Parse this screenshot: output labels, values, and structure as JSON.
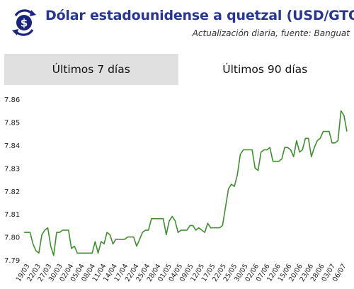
{
  "header": {
    "title": "Dólar estadounidense a quetzal (USD/GTQ)",
    "subtitle": "Actualización diaria, fuente: Banguat",
    "logo_icon": "dollar-exchange-icon",
    "accent_color": "#283593"
  },
  "tabs": [
    {
      "label": "Últimos 7 días",
      "active": false
    },
    {
      "label": "Últimos 90 días",
      "active": true
    }
  ],
  "chart_data": {
    "type": "line",
    "title": "",
    "xlabel": "",
    "ylabel": "",
    "line_color": "#3f8f2e",
    "grid": false,
    "ylim": [
      7.787,
      7.865
    ],
    "yticks": [
      "7.86",
      "7.85",
      "7.84",
      "7.83",
      "7.82",
      "7.81",
      "7.80",
      "7.79"
    ],
    "xticks": [
      "19/03",
      "22/03",
      "27/03",
      "30/03",
      "02/04",
      "05/04",
      "08/04",
      "11/04",
      "14/04",
      "17/04",
      "22/04",
      "25/04",
      "28/04",
      "01/05",
      "04/05",
      "09/05",
      "12/05",
      "17/05",
      "22/05",
      "25/05",
      "30/05",
      "02/06",
      "07/06",
      "12/06",
      "15/06",
      "20/06",
      "23/06",
      "28/06",
      "03/07",
      "06/07"
    ],
    "values": [
      7.802,
      7.802,
      7.802,
      7.797,
      7.794,
      7.793,
      7.801,
      7.803,
      7.804,
      7.796,
      7.792,
      7.802,
      7.802,
      7.803,
      7.803,
      7.803,
      7.795,
      7.796,
      7.793,
      7.793,
      7.793,
      7.793,
      7.793,
      7.793,
      7.798,
      7.793,
      7.798,
      7.797,
      7.802,
      7.801,
      7.797,
      7.799,
      7.799,
      7.799,
      7.799,
      7.8,
      7.8,
      7.8,
      7.796,
      7.799,
      7.802,
      7.803,
      7.803,
      7.808,
      7.808,
      7.808,
      7.808,
      7.808,
      7.801,
      7.807,
      7.809,
      7.807,
      7.802,
      7.803,
      7.803,
      7.803,
      7.805,
      7.805,
      7.803,
      7.804,
      7.803,
      7.802,
      7.806,
      7.804,
      7.804,
      7.804,
      7.804,
      7.805,
      7.813,
      7.821,
      7.823,
      7.822,
      7.827,
      7.836,
      7.838,
      7.838,
      7.838,
      7.838,
      7.83,
      7.829,
      7.837,
      7.838,
      7.838,
      7.839,
      7.833,
      7.833,
      7.833,
      7.834,
      7.839,
      7.839,
      7.838,
      7.835,
      7.842,
      7.837,
      7.838,
      7.843,
      7.843,
      7.835,
      7.839,
      7.842,
      7.843,
      7.846,
      7.846,
      7.846,
      7.841,
      7.841,
      7.842,
      7.855,
      7.853,
      7.846
    ]
  }
}
